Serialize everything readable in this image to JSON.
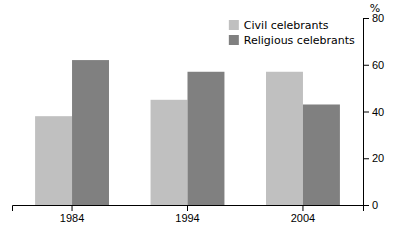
{
  "chart_data": {
    "type": "bar",
    "categories": [
      "1984",
      "1994",
      "2004"
    ],
    "series": [
      {
        "name": "Civil celebrants",
        "color": "#c0c0c0",
        "values": [
          38,
          45,
          57
        ]
      },
      {
        "name": "Religious celebrants",
        "color": "#808080",
        "values": [
          62,
          57,
          43
        ]
      }
    ],
    "ylabel": "%",
    "ylim": [
      0,
      80
    ],
    "yticks": [
      0,
      20,
      40,
      60,
      80
    ],
    "legend": "upper right",
    "grid": false
  }
}
